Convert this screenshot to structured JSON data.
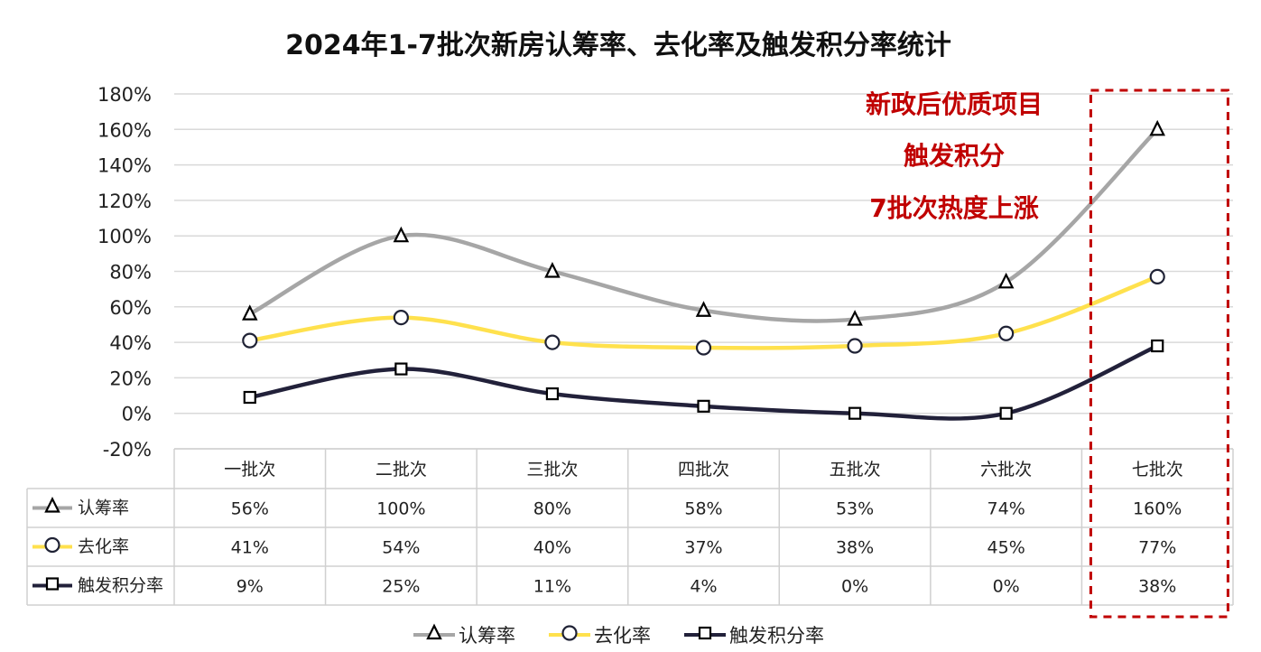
{
  "chart_data": {
    "type": "line",
    "title": "2024年1-7批次新房认筹率、去化率及触发积分率统计",
    "categories": [
      "一批次",
      "二批次",
      "三批次",
      "四批次",
      "五批次",
      "六批次",
      "七批次"
    ],
    "ylim": [
      -20,
      180
    ],
    "yticks": [
      -20,
      0,
      20,
      40,
      60,
      80,
      100,
      120,
      140,
      160,
      180
    ],
    "ytick_labels": [
      "-20%",
      "0%",
      "20%",
      "40%",
      "60%",
      "80%",
      "100%",
      "120%",
      "140%",
      "160%",
      "180%"
    ],
    "grid": true,
    "series": [
      {
        "name": "认筹率",
        "values": [
          56,
          100,
          80,
          58,
          53,
          74,
          160
        ],
        "labels": [
          "56%",
          "100%",
          "80%",
          "58%",
          "53%",
          "74%",
          "160%"
        ],
        "color": "#a6a6a6",
        "marker": "triangle"
      },
      {
        "name": "去化率",
        "values": [
          41,
          54,
          40,
          37,
          38,
          45,
          77
        ],
        "labels": [
          "41%",
          "54%",
          "40%",
          "37%",
          "38%",
          "45%",
          "77%"
        ],
        "color": "#ffe14d",
        "marker": "circle"
      },
      {
        "name": "触发积分率",
        "values": [
          9,
          25,
          11,
          4,
          0,
          0,
          38
        ],
        "labels": [
          "9%",
          "25%",
          "11%",
          "4%",
          "0%",
          "0%",
          "38%"
        ],
        "color": "#22213a",
        "marker": "square"
      }
    ],
    "legend_position": "bottom",
    "annotation": {
      "lines": [
        "新政后优质项目",
        "触发积分",
        "7批次热度上涨"
      ],
      "color": "#c00000",
      "highlight_category": "七批次"
    }
  }
}
